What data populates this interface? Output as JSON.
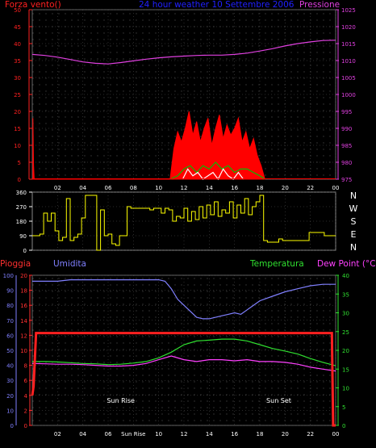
{
  "chart_data": [
    {
      "type": "line",
      "title": "24 hour weather 10 Settembre 2006",
      "left_axis": {
        "label": "Forza vento()",
        "color": "#ff2020",
        "range": [
          0,
          50
        ],
        "ticks": [
          "0",
          "5",
          "10",
          "15",
          "20",
          "25",
          "30",
          "35",
          "40",
          "45",
          "50"
        ]
      },
      "right_axis": {
        "label": "Pressione",
        "color": "#e040e0",
        "range": [
          975,
          1025
        ],
        "ticks": [
          "975",
          "980",
          "985",
          "990",
          "995",
          "1000",
          "1005",
          "1010",
          "1015",
          "1020",
          "1025"
        ]
      },
      "x_ticks": [
        "02",
        "04",
        "06",
        "08",
        "10",
        "12",
        "14",
        "16",
        "18",
        "20",
        "22",
        "00"
      ],
      "grid": true,
      "series": [
        {
          "name": "Pressione",
          "color": "#e040e0",
          "x": [
            0,
            1,
            2,
            3,
            4,
            5,
            6,
            7,
            8,
            9,
            10,
            11,
            12,
            13,
            14,
            15,
            16,
            17,
            18,
            19,
            20,
            21,
            22,
            23,
            24
          ],
          "values": [
            1011.8,
            1011.5,
            1011,
            1010.3,
            1009.6,
            1009.2,
            1009,
            1009.4,
            1009.9,
            1010.4,
            1010.8,
            1011.1,
            1011.3,
            1011.5,
            1011.6,
            1011.6,
            1011.8,
            1012.2,
            1012.8,
            1013.5,
            1014.3,
            1015,
            1015.5,
            1015.9,
            1016
          ]
        },
        {
          "name": "",
          "color": "#ff0000",
          "role": "gust",
          "x": [
            0.05,
            0.1,
            0.15,
            10.9,
            11.2,
            11.5,
            11.8,
            12.1,
            12.4,
            12.7,
            13,
            13.3,
            13.6,
            13.9,
            14.2,
            14.5,
            14.8,
            15.1,
            15.4,
            15.7,
            16,
            16.3,
            16.6,
            16.9,
            17.2,
            17.5,
            17.8,
            18.1,
            18.4
          ],
          "values": [
            18,
            4,
            0,
            0,
            9,
            14,
            11,
            15,
            20,
            13,
            17,
            11,
            15,
            18,
            10,
            15,
            19,
            12,
            16,
            13,
            15,
            18,
            11,
            14,
            9,
            12,
            7,
            4,
            0
          ]
        },
        {
          "name": "",
          "color": "#00c000",
          "role": "average",
          "x": [
            10.9,
            11.5,
            12,
            12.5,
            13,
            13.5,
            14,
            14.5,
            15,
            15.5,
            16,
            16.5,
            17,
            17.5,
            18,
            18.4
          ],
          "values": [
            0,
            1,
            3,
            4,
            2,
            4,
            3,
            5,
            3,
            4,
            2,
            3,
            3,
            2,
            1,
            0
          ]
        },
        {
          "name": "",
          "color": "#ffffff",
          "role": "peaks",
          "x": [
            11.9,
            12.3,
            12.7,
            13.1,
            13.5,
            13.9,
            14.3,
            14.7,
            15.1,
            15.5,
            15.9,
            16.3,
            16.7
          ],
          "values": [
            0,
            3,
            1,
            2,
            0,
            1,
            2,
            0,
            3,
            1,
            0,
            2,
            0
          ]
        }
      ]
    },
    {
      "type": "line",
      "left_axis": {
        "range": [
          0,
          360
        ],
        "ticks": [
          "0",
          "90",
          "180",
          "270",
          "360"
        ]
      },
      "right_labels": [
        "N",
        "W",
        "S",
        "E",
        "N"
      ],
      "series": [
        {
          "name": "",
          "color": "#ffff00",
          "x": [
            0,
            0.3,
            0.6,
            0.9,
            1.2,
            1.5,
            1.8,
            2.1,
            2.4,
            2.7,
            3,
            3.3,
            3.6,
            3.9,
            4.2,
            4.5,
            4.8,
            5.1,
            5.4,
            5.7,
            6,
            6.3,
            6.6,
            6.9,
            7.2,
            7.5,
            7.8,
            8.1,
            8.4,
            8.7,
            9,
            9.3,
            9.6,
            9.9,
            10.2,
            10.5,
            10.8,
            11.1,
            11.4,
            11.7,
            12,
            12.3,
            12.6,
            12.9,
            13.2,
            13.5,
            13.8,
            14.1,
            14.4,
            14.7,
            15,
            15.3,
            15.6,
            15.9,
            16.2,
            16.5,
            16.8,
            17.1,
            17.4,
            17.7,
            18,
            18.3,
            18.6,
            18.9,
            19.2,
            19.5,
            19.8,
            20.1,
            20.4,
            20.7,
            21,
            21.3,
            21.6,
            21.9,
            22.2,
            22.5,
            22.8,
            23.1,
            23.4,
            23.7,
            24
          ],
          "values": [
            90,
            90,
            100,
            230,
            180,
            230,
            120,
            60,
            80,
            320,
            60,
            80,
            100,
            200,
            340,
            340,
            340,
            0,
            250,
            90,
            100,
            40,
            30,
            90,
            90,
            270,
            260,
            260,
            260,
            260,
            260,
            250,
            260,
            260,
            230,
            260,
            250,
            180,
            210,
            200,
            260,
            180,
            240,
            190,
            270,
            200,
            280,
            220,
            300,
            210,
            250,
            230,
            300,
            200,
            280,
            230,
            320,
            220,
            270,
            300,
            340,
            60,
            50,
            50,
            50,
            70,
            60,
            60,
            60,
            60,
            60,
            60,
            60,
            110,
            110,
            110,
            110,
            90,
            90,
            90,
            90
          ]
        }
      ]
    },
    {
      "type": "line",
      "legend": [
        "Pioggia",
        "Umidita",
        "Temperatura",
        "Dew Point (°C)"
      ],
      "left_axis_rain": {
        "label": "Pioggia",
        "color": "#ff3030",
        "range": [
          0,
          20
        ],
        "ticks": [
          "0",
          "2",
          "4",
          "6",
          "8",
          "10",
          "12",
          "14",
          "16",
          "18",
          "20"
        ]
      },
      "left_axis_humidity": {
        "label": "Umidita",
        "color": "#8080ff",
        "range": [
          0,
          100
        ],
        "ticks": [
          "0",
          "10",
          "20",
          "30",
          "40",
          "50",
          "60",
          "70",
          "80",
          "90",
          "100"
        ]
      },
      "right_axis": {
        "label": "Dew Point (°C)",
        "color": "#30e030",
        "range": [
          0,
          40
        ],
        "ticks": [
          "0",
          "5",
          "10",
          "15",
          "20",
          "25",
          "30",
          "35",
          "40"
        ]
      },
      "x_ticks": [
        "02",
        "04",
        "06",
        "Sun Rise",
        "10",
        "12",
        "14",
        "16",
        "18",
        "20",
        "22",
        "00"
      ],
      "annotations": [
        {
          "text": "Sun Rise",
          "x": 7
        },
        {
          "text": "Sun Set",
          "x": 19.5
        }
      ],
      "grid": true,
      "series": [
        {
          "name": "Umidita",
          "color": "#8080ff",
          "x": [
            0,
            1,
            2,
            3,
            4,
            5,
            6,
            7,
            8,
            9,
            10,
            10.5,
            11,
            11.5,
            12,
            12.5,
            13,
            13.5,
            14,
            14.5,
            15,
            15.5,
            16,
            16.5,
            17,
            17.5,
            18,
            19,
            20,
            21,
            22,
            23,
            24
          ],
          "values": [
            96,
            96,
            96,
            97,
            97,
            97,
            97,
            97,
            97,
            97,
            97,
            96,
            91,
            84,
            80,
            76,
            72,
            71,
            71,
            72,
            73,
            74,
            75,
            74,
            77,
            80,
            83,
            86,
            89,
            91,
            93,
            94,
            94
          ]
        },
        {
          "name": "Temperatura",
          "color": "#30e030",
          "x": [
            0,
            1,
            2,
            3,
            4,
            5,
            6,
            7,
            8,
            9,
            10,
            11,
            12,
            13,
            14,
            15,
            16,
            17,
            18,
            19,
            20,
            21,
            22,
            23,
            24
          ],
          "values": [
            17,
            17,
            16.9,
            16.7,
            16.5,
            16.4,
            16.2,
            16.3,
            16.6,
            17,
            18,
            19.5,
            21.5,
            22.5,
            22.7,
            23,
            23,
            22.5,
            21.5,
            20.5,
            19.8,
            19,
            17.8,
            16.8,
            15.9
          ]
        },
        {
          "name": "Dew Point (°C)",
          "color": "#ff40ff",
          "x": [
            0,
            1,
            2,
            3,
            4,
            5,
            6,
            7,
            8,
            9,
            10,
            11,
            12,
            13,
            14,
            15,
            16,
            17,
            18,
            19,
            20,
            21,
            22,
            23,
            24
          ],
          "values": [
            16.5,
            16.4,
            16.3,
            16.3,
            16.2,
            16,
            15.8,
            15.8,
            16,
            16.5,
            17.5,
            18.5,
            17.5,
            17,
            17.5,
            17.5,
            17.2,
            17.5,
            17,
            17,
            16.8,
            16.3,
            15.5,
            15,
            14.5
          ]
        },
        {
          "name": "Pioggia",
          "color": "#ff2020",
          "x": [
            0,
            0.1,
            0.3,
            0.5,
            23.7,
            23.8,
            24
          ],
          "values": [
            4,
            5.2,
            12.3,
            12.3,
            12.3,
            0,
            0
          ]
        }
      ]
    }
  ]
}
